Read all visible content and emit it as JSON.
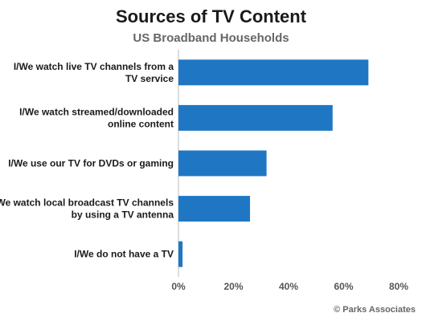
{
  "chart_data": {
    "type": "bar",
    "orientation": "horizontal",
    "title": "Sources of TV Content",
    "subtitle": "US Broadband Households",
    "categories": [
      [
        "I/We watch live TV channels from a",
        "TV service"
      ],
      [
        "I/We watch streamed/downloaded",
        "online content"
      ],
      [
        "I/We use our TV for DVDs or gaming"
      ],
      [
        "I/We watch local broadcast TV channels",
        "by using a TV antenna"
      ],
      [
        "I/We do not have a TV"
      ]
    ],
    "values": [
      69,
      56,
      32,
      26,
      1.5
    ],
    "xlim": [
      0,
      80
    ],
    "xticks": [
      "0%",
      "20%",
      "40%",
      "60%",
      "80%"
    ],
    "grid": false,
    "legend": "none",
    "bar_color": "#1f77c4"
  },
  "footer": {
    "copyright": "© Parks Associates"
  }
}
